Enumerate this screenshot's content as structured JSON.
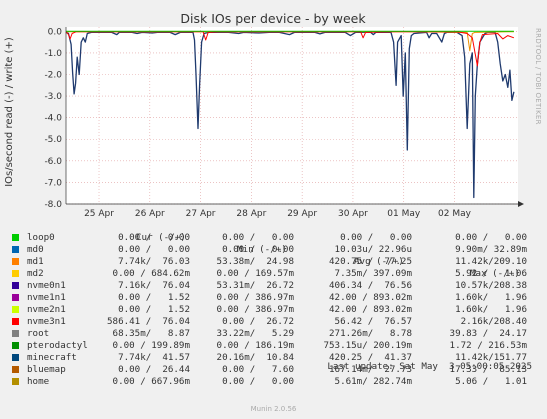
{
  "chart_data": {
    "type": "line",
    "title": "Disk IOs per device - by week",
    "ylabel": "IOs/second read (-) / write (+)",
    "ylim": [
      -8.0,
      0.2
    ],
    "yticks": [
      {
        "value": 0,
        "label": "0.0"
      },
      {
        "value": -1,
        "label": "-1.0"
      },
      {
        "value": -2,
        "label": "-2.0"
      },
      {
        "value": -3,
        "label": "-3.0"
      },
      {
        "value": -4,
        "label": "-4.0"
      },
      {
        "value": -5,
        "label": "-5.0"
      },
      {
        "value": -6,
        "label": "-6.0"
      },
      {
        "value": -7,
        "label": "-7.0"
      },
      {
        "value": -8,
        "label": "-8.0"
      }
    ],
    "xrange": [
      0,
      8.9
    ],
    "xticks": [
      {
        "value": 0.65,
        "label": "25 Apr"
      },
      {
        "value": 1.65,
        "label": "26 Apr"
      },
      {
        "value": 2.65,
        "label": "27 Apr"
      },
      {
        "value": 3.65,
        "label": "28 Apr"
      },
      {
        "value": 4.65,
        "label": "29 Apr"
      },
      {
        "value": 5.65,
        "label": "30 Apr"
      },
      {
        "value": 6.65,
        "label": "01 May"
      },
      {
        "value": 7.65,
        "label": "02 May"
      }
    ],
    "grid": true,
    "series": [
      {
        "name": "minecraft",
        "color": "#1f3a6e",
        "points": [
          [
            0.0,
            -0.05
          ],
          [
            0.05,
            -0.1
          ],
          [
            0.1,
            -0.6
          ],
          [
            0.13,
            -1.9
          ],
          [
            0.16,
            -2.9
          ],
          [
            0.19,
            -2.4
          ],
          [
            0.22,
            -1.2
          ],
          [
            0.26,
            -2.0
          ],
          [
            0.3,
            -0.5
          ],
          [
            0.34,
            -0.3
          ],
          [
            0.38,
            -0.5
          ],
          [
            0.42,
            -0.1
          ],
          [
            0.5,
            -0.05
          ],
          [
            0.9,
            -0.05
          ],
          [
            1.0,
            -0.15
          ],
          [
            1.05,
            -0.05
          ],
          [
            1.3,
            -0.05
          ],
          [
            1.4,
            -0.1
          ],
          [
            1.5,
            -0.05
          ],
          [
            1.7,
            -0.08
          ],
          [
            1.8,
            -0.05
          ],
          [
            2.05,
            -0.05
          ],
          [
            2.15,
            -0.15
          ],
          [
            2.25,
            -0.05
          ],
          [
            2.5,
            -0.05
          ],
          [
            2.53,
            -0.4
          ],
          [
            2.56,
            -2.0
          ],
          [
            2.6,
            -4.5
          ],
          [
            2.63,
            -2.5
          ],
          [
            2.67,
            -0.5
          ],
          [
            2.72,
            -0.1
          ],
          [
            2.8,
            -0.05
          ],
          [
            3.2,
            -0.05
          ],
          [
            3.4,
            -0.1
          ],
          [
            3.5,
            -0.05
          ],
          [
            3.8,
            -0.08
          ],
          [
            4.0,
            -0.05
          ],
          [
            4.2,
            -0.05
          ],
          [
            4.4,
            -0.15
          ],
          [
            4.5,
            -0.05
          ],
          [
            4.9,
            -0.05
          ],
          [
            5.0,
            -0.12
          ],
          [
            5.1,
            -0.05
          ],
          [
            5.5,
            -0.05
          ],
          [
            5.6,
            -0.2
          ],
          [
            5.7,
            -0.05
          ],
          [
            6.0,
            -0.05
          ],
          [
            6.05,
            -0.15
          ],
          [
            6.1,
            -0.05
          ],
          [
            6.4,
            -0.05
          ],
          [
            6.45,
            -0.5
          ],
          [
            6.5,
            -2.5
          ],
          [
            6.53,
            -0.5
          ],
          [
            6.6,
            -0.2
          ],
          [
            6.64,
            -3.0
          ],
          [
            6.68,
            -1.0
          ],
          [
            6.72,
            -5.5
          ],
          [
            6.76,
            -0.8
          ],
          [
            6.8,
            -0.2
          ],
          [
            6.85,
            -0.1
          ],
          [
            7.1,
            -0.05
          ],
          [
            7.15,
            -0.3
          ],
          [
            7.2,
            -0.1
          ],
          [
            7.3,
            -0.1
          ],
          [
            7.4,
            -0.5
          ],
          [
            7.45,
            -0.1
          ],
          [
            7.5,
            -0.05
          ],
          [
            7.7,
            -0.05
          ],
          [
            7.8,
            -0.2
          ],
          [
            7.85,
            -1.2
          ],
          [
            7.9,
            -4.5
          ],
          [
            7.95,
            -1.5
          ],
          [
            8.0,
            -1.0
          ],
          [
            8.03,
            -7.7
          ],
          [
            8.06,
            -3.0
          ],
          [
            8.1,
            -1.5
          ],
          [
            8.15,
            -0.5
          ],
          [
            8.2,
            -0.3
          ],
          [
            8.25,
            -0.1
          ],
          [
            8.3,
            -0.05
          ],
          [
            8.45,
            -0.05
          ],
          [
            8.5,
            -0.5
          ],
          [
            8.55,
            -1.5
          ],
          [
            8.6,
            -2.3
          ],
          [
            8.65,
            -2.0
          ],
          [
            8.7,
            -2.6
          ],
          [
            8.74,
            -1.8
          ],
          [
            8.78,
            -3.2
          ],
          [
            8.82,
            -2.8
          ]
        ]
      },
      {
        "name": "md1",
        "color": "#ea8f00",
        "points": [
          [
            0.0,
            -0.02
          ],
          [
            2.6,
            -0.02
          ],
          [
            6.7,
            -0.02
          ],
          [
            7.9,
            -0.05
          ],
          [
            7.95,
            -0.9
          ],
          [
            8.0,
            -0.1
          ],
          [
            8.05,
            -0.05
          ],
          [
            8.82,
            -0.02
          ]
        ]
      },
      {
        "name": "nvme3n1",
        "color": "#ff0000",
        "points": [
          [
            0.0,
            -0.02
          ],
          [
            0.05,
            -0.15
          ],
          [
            0.08,
            -0.35
          ],
          [
            0.12,
            -0.1
          ],
          [
            0.2,
            -0.02
          ],
          [
            1.0,
            -0.02
          ],
          [
            2.0,
            -0.02
          ],
          [
            2.7,
            -0.02
          ],
          [
            2.75,
            -0.4
          ],
          [
            2.8,
            -0.05
          ],
          [
            3.0,
            -0.02
          ],
          [
            4.0,
            -0.02
          ],
          [
            5.0,
            -0.02
          ],
          [
            5.8,
            -0.02
          ],
          [
            5.85,
            -0.3
          ],
          [
            5.9,
            -0.05
          ],
          [
            6.5,
            -0.02
          ],
          [
            6.6,
            -0.02
          ],
          [
            7.0,
            -0.02
          ],
          [
            7.7,
            -0.02
          ],
          [
            7.9,
            -0.1
          ],
          [
            8.0,
            -0.3
          ],
          [
            8.1,
            -1.6
          ],
          [
            8.15,
            -0.5
          ],
          [
            8.2,
            -0.15
          ],
          [
            8.5,
            -0.1
          ],
          [
            8.6,
            -0.35
          ],
          [
            8.7,
            -0.2
          ],
          [
            8.82,
            -0.3
          ]
        ]
      },
      {
        "name": "root",
        "color": "#00cc00",
        "points": [
          [
            0.0,
            0.0
          ],
          [
            8.82,
            0.0
          ]
        ]
      }
    ],
    "legend_headers": {
      "cur": "Cur (-/+)",
      "min": "Min (-/+)",
      "avg": "Avg (-/+)",
      "max": "Max (-/+)"
    },
    "legend": [
      {
        "name": "loop0",
        "color": "#00cc00",
        "cur": "0.00 /   0.00",
        "min": "0.00 /   0.00",
        "avg": "0.00 /   0.00",
        "max": "0.00 /   0.00"
      },
      {
        "name": "md0",
        "color": "#0066b3",
        "cur": "0.00 /   0.00",
        "min": "0.00 /   0.00",
        "avg": "10.03u/ 22.96u",
        "max": "9.90m/ 32.89m"
      },
      {
        "name": "md1",
        "color": "#ff8000",
        "cur": "7.74k/  76.03",
        "min": "53.38m/  24.98",
        "avg": "420.75 /  77.25",
        "max": "11.42k/209.10"
      },
      {
        "name": "md2",
        "color": "#ffcc00",
        "cur": "0.00 / 684.62m",
        "min": "0.00 / 169.57m",
        "avg": "7.35m/ 397.09m",
        "max": "5.92 /   1.06"
      },
      {
        "name": "nvme0n1",
        "color": "#330099",
        "cur": "7.16k/  76.04",
        "min": "53.31m/  26.72",
        "avg": "406.34 /  76.56",
        "max": "10.57k/208.38"
      },
      {
        "name": "nvme1n1",
        "color": "#990099",
        "cur": "0.00 /   1.52",
        "min": "0.00 / 386.97m",
        "avg": "42.00 / 893.02m",
        "max": "1.60k/   1.96"
      },
      {
        "name": "nvme2n1",
        "color": "#ccff00",
        "cur": "0.00 /   1.52",
        "min": "0.00 / 386.97m",
        "avg": "42.00 / 893.02m",
        "max": "1.60k/   1.96"
      },
      {
        "name": "nvme3n1",
        "color": "#ff0000",
        "cur": "586.41 /  76.04",
        "min": "0.00 /  26.72",
        "avg": "56.42 /  76.57",
        "max": "2.16k/208.40"
      },
      {
        "name": "root",
        "color": "#808080",
        "cur": "68.35m/   8.87",
        "min": "33.22m/   5.29",
        "avg": "271.26m/   8.78",
        "max": "39.83 /  24.17"
      },
      {
        "name": "pterodactyl",
        "color": "#008f00",
        "cur": "0.00 / 199.89m",
        "min": "0.00 / 186.19m",
        "avg": "753.15u/ 200.19m",
        "max": "1.72 / 216.53m"
      },
      {
        "name": "minecraft",
        "color": "#00487d",
        "cur": "7.74k/  41.57",
        "min": "20.16m/  10.84",
        "avg": "420.25 /  41.37",
        "max": "11.42k/151.77"
      },
      {
        "name": "bluemap",
        "color": "#b35a00",
        "cur": "0.00 /  26.44",
        "min": "0.00 /   7.60",
        "avg": "167.14m/  27.73",
        "max": "17.33 /  85.13"
      },
      {
        "name": "home",
        "color": "#b38f00",
        "cur": "0.00 / 667.96m",
        "min": "0.00 /   0.00",
        "avg": "5.61m/ 282.74m",
        "max": "5.06 /   1.01"
      }
    ]
  },
  "side_label": "RRDTOOL / TOBI OETIKER",
  "last_update": "Last update: Sat May  3 05:00:05 2025",
  "footer": "Munin 2.0.56"
}
